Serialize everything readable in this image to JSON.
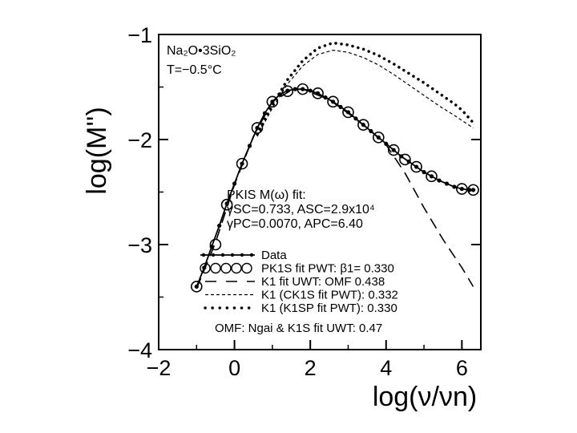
{
  "chart_data": {
    "type": "line",
    "xlabel": "log(ν/νn)",
    "ylabel": "log(M'')",
    "xlim": [
      -2,
      6.5
    ],
    "ylim": [
      -4,
      -1
    ],
    "xticks": [
      "−2",
      "0",
      "2",
      "4",
      "6"
    ],
    "xtick_values": [
      -2,
      0,
      2,
      4,
      6
    ],
    "yticks": [
      "−1",
      "−2",
      "−3",
      "−4"
    ],
    "ytick_values": [
      -1,
      -2,
      -3,
      -4
    ],
    "grid": false,
    "legend_position": "bottom",
    "annotations": {
      "sample_line1": "Na₂O•3SiO₂",
      "sample_line2": "T=−0.5°C",
      "fit_line1": "PKIS  M(ω)  fit:",
      "fit_line2": "γSC=0.733,  ASC=2.9x10⁴",
      "fit_line3": "γPC=0.0070,  APC=6.40"
    },
    "legend": [
      {
        "style": "solid-dots",
        "label": "Data"
      },
      {
        "style": "open-circles",
        "label": "PK1S  fit  PWT:  β1=  0.330"
      },
      {
        "style": "long-dash",
        "label": "K1  fit  UWT:  OMF   0.438"
      },
      {
        "style": "short-dash",
        "label": "K1  (CK1S  fit  PWT):  0.332"
      },
      {
        "style": "dotted",
        "label": "K1  (K1SP  fit  PWT):  0.330"
      }
    ],
    "footnote": "OMF:   Ngai  &  K1S  fit  UWT:  0.47",
    "series": [
      {
        "name": "Data",
        "style": "solid-dots",
        "x": [
          -1.0,
          -0.8,
          -0.6,
          -0.4,
          -0.2,
          0.0,
          0.2,
          0.4,
          0.6,
          0.8,
          1.0,
          1.2,
          1.4,
          1.6,
          1.8,
          2.0,
          2.2,
          2.4,
          2.6,
          2.8,
          3.0,
          3.2,
          3.4,
          3.6,
          3.8,
          4.0,
          4.2,
          4.4,
          4.6,
          4.8,
          5.0,
          5.2,
          5.4,
          5.6,
          5.8,
          6.0,
          6.2,
          6.3
        ],
        "y": [
          -3.4,
          -3.22,
          -3.02,
          -2.82,
          -2.61,
          -2.42,
          -2.23,
          -2.06,
          -1.89,
          -1.75,
          -1.64,
          -1.57,
          -1.535,
          -1.52,
          -1.52,
          -1.535,
          -1.56,
          -1.6,
          -1.64,
          -1.69,
          -1.74,
          -1.8,
          -1.86,
          -1.92,
          -1.98,
          -2.04,
          -2.1,
          -2.16,
          -2.21,
          -2.26,
          -2.31,
          -2.35,
          -2.39,
          -2.42,
          -2.45,
          -2.47,
          -2.48,
          -2.48
        ]
      },
      {
        "name": "PK1S fit PWT",
        "style": "open-circles",
        "x": [
          -1.0,
          -0.5,
          -0.2,
          0.2,
          0.6,
          1.0,
          1.4,
          1.8,
          2.2,
          2.6,
          3.0,
          3.4,
          3.8,
          4.2,
          4.5,
          4.8,
          5.2,
          6.0,
          6.3
        ],
        "y": [
          -3.4,
          -3.0,
          -2.62,
          -2.23,
          -1.89,
          -1.64,
          -1.54,
          -1.52,
          -1.56,
          -1.64,
          -1.74,
          -1.86,
          -1.98,
          -2.1,
          -2.19,
          -2.26,
          -2.35,
          -2.47,
          -2.48
        ]
      },
      {
        "name": "K1 fit UWT",
        "style": "long-dash",
        "x": [
          -1.0,
          -0.5,
          0.0,
          0.5,
          1.0,
          1.5,
          1.8,
          2.5,
          3.0,
          3.5,
          4.0,
          4.5,
          5.0,
          5.5,
          6.0,
          6.3
        ],
        "y": [
          -3.42,
          -2.98,
          -2.43,
          -1.97,
          -1.64,
          -1.53,
          -1.52,
          -1.62,
          -1.75,
          -1.89,
          -2.05,
          -2.32,
          -2.65,
          -2.95,
          -3.22,
          -3.4
        ]
      },
      {
        "name": "K1 (CK1S fit PWT)",
        "style": "short-dash",
        "x": [
          0.6,
          1.0,
          1.4,
          1.8,
          2.2,
          2.6,
          3.0,
          3.4,
          3.8,
          4.2,
          4.6,
          5.0,
          5.4,
          5.8,
          6.3
        ],
        "y": [
          -1.97,
          -1.7,
          -1.47,
          -1.3,
          -1.19,
          -1.15,
          -1.17,
          -1.22,
          -1.29,
          -1.38,
          -1.48,
          -1.58,
          -1.68,
          -1.77,
          -1.89
        ]
      },
      {
        "name": "K1 (K1SP fit PWT)",
        "style": "dotted",
        "x": [
          0.6,
          1.0,
          1.4,
          1.8,
          2.2,
          2.6,
          3.0,
          3.4,
          3.8,
          4.2,
          4.6,
          5.0,
          5.4,
          5.8,
          6.0,
          6.3
        ],
        "y": [
          -1.95,
          -1.67,
          -1.43,
          -1.25,
          -1.13,
          -1.08,
          -1.1,
          -1.14,
          -1.2,
          -1.28,
          -1.37,
          -1.46,
          -1.56,
          -1.66,
          -1.72,
          -1.84
        ]
      }
    ]
  }
}
